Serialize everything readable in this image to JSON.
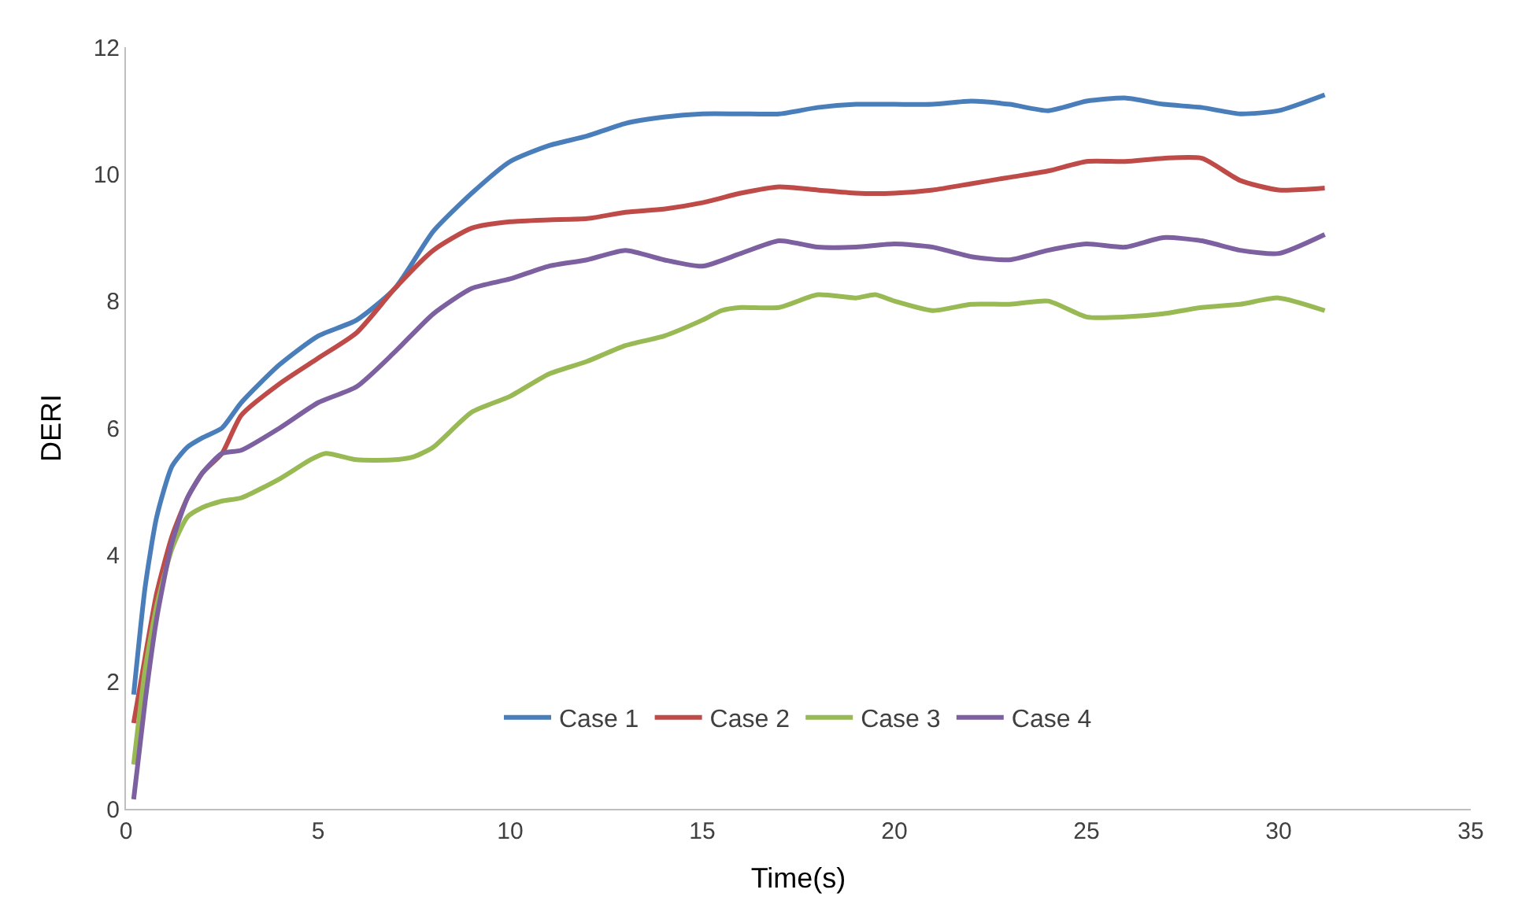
{
  "chart_data": {
    "type": "line",
    "xlabel": "Time(s)",
    "ylabel": "DERI",
    "xlim": [
      0,
      35
    ],
    "xticks": [
      0,
      5,
      10,
      15,
      20,
      25,
      30,
      35
    ],
    "ylim": [
      0,
      12
    ],
    "yticks": [
      0,
      2,
      4,
      6,
      8,
      10,
      12
    ],
    "grid": false,
    "legend": "bottom",
    "marker": "none",
    "line_style": "solid",
    "series": [
      {
        "name": "Case 1",
        "color": "#4a7ebb",
        "x": [
          0.2,
          0.5,
          0.8,
          1.2,
          1.6,
          2,
          2.5,
          3,
          4,
          5,
          6,
          7,
          8,
          9,
          10,
          11,
          12,
          13,
          14,
          15,
          16,
          17,
          18,
          19,
          20,
          21,
          22,
          23,
          24,
          25,
          26,
          27,
          28,
          29,
          30,
          31.2
        ],
        "values": [
          1.8,
          3.5,
          4.6,
          5.4,
          5.7,
          5.85,
          6.0,
          6.4,
          7.0,
          7.45,
          7.7,
          8.2,
          9.1,
          9.7,
          10.2,
          10.45,
          10.6,
          10.8,
          10.9,
          10.95,
          10.95,
          10.95,
          11.05,
          11.1,
          11.1,
          11.1,
          11.15,
          11.1,
          11.0,
          11.15,
          11.2,
          11.1,
          11.05,
          10.95,
          11.0,
          11.25
        ]
      },
      {
        "name": "Case 2",
        "color": "#be4b48",
        "x": [
          0.2,
          0.5,
          0.8,
          1.2,
          1.6,
          2,
          2.5,
          3,
          4,
          5,
          6,
          7,
          8,
          9,
          10,
          11,
          12,
          13,
          14,
          15,
          16,
          17,
          18,
          19,
          20,
          21,
          22,
          23,
          24,
          25,
          26,
          27,
          28,
          29,
          30,
          31.2
        ],
        "values": [
          1.35,
          2.4,
          3.4,
          4.3,
          4.9,
          5.3,
          5.6,
          6.2,
          6.7,
          7.1,
          7.5,
          8.2,
          8.8,
          9.15,
          9.25,
          9.28,
          9.3,
          9.4,
          9.45,
          9.55,
          9.7,
          9.8,
          9.75,
          9.7,
          9.7,
          9.75,
          9.85,
          9.95,
          10.05,
          10.2,
          10.2,
          10.25,
          10.25,
          9.9,
          9.75,
          9.78
        ]
      },
      {
        "name": "Case 3",
        "color": "#98b954",
        "x": [
          0.2,
          0.5,
          0.8,
          1.2,
          1.6,
          2,
          2.5,
          3,
          4,
          4.8,
          5.2,
          6,
          7,
          7.5,
          8,
          9,
          10,
          11,
          12,
          13,
          14,
          15,
          15.5,
          16,
          17,
          18,
          19,
          19.5,
          20,
          21,
          22,
          23,
          24,
          25,
          26,
          27,
          28,
          29,
          30,
          31.2
        ],
        "values": [
          0.7,
          2.2,
          3.2,
          4.1,
          4.6,
          4.75,
          4.85,
          4.9,
          5.2,
          5.5,
          5.6,
          5.5,
          5.5,
          5.55,
          5.7,
          6.25,
          6.5,
          6.85,
          7.05,
          7.3,
          7.45,
          7.7,
          7.85,
          7.9,
          7.9,
          8.1,
          8.05,
          8.1,
          8.0,
          7.85,
          7.95,
          7.95,
          8.0,
          7.75,
          7.75,
          7.8,
          7.9,
          7.95,
          8.05,
          7.85
        ]
      },
      {
        "name": "Case 4",
        "color": "#7d60a0",
        "x": [
          0.2,
          0.5,
          0.8,
          1.2,
          1.6,
          2,
          2.5,
          3,
          4,
          5,
          6,
          7,
          8,
          9,
          10,
          11,
          12,
          13,
          14,
          15,
          16,
          17,
          18,
          19,
          20,
          21,
          22,
          23,
          24,
          25,
          26,
          27,
          28,
          29,
          30,
          31.2
        ],
        "values": [
          0.15,
          1.7,
          3.0,
          4.2,
          4.9,
          5.3,
          5.6,
          5.65,
          6.0,
          6.4,
          6.65,
          7.2,
          7.8,
          8.2,
          8.35,
          8.55,
          8.65,
          8.8,
          8.65,
          8.55,
          8.75,
          8.95,
          8.85,
          8.85,
          8.9,
          8.85,
          8.7,
          8.65,
          8.8,
          8.9,
          8.85,
          9.0,
          8.95,
          8.8,
          8.75,
          9.05
        ]
      }
    ]
  }
}
